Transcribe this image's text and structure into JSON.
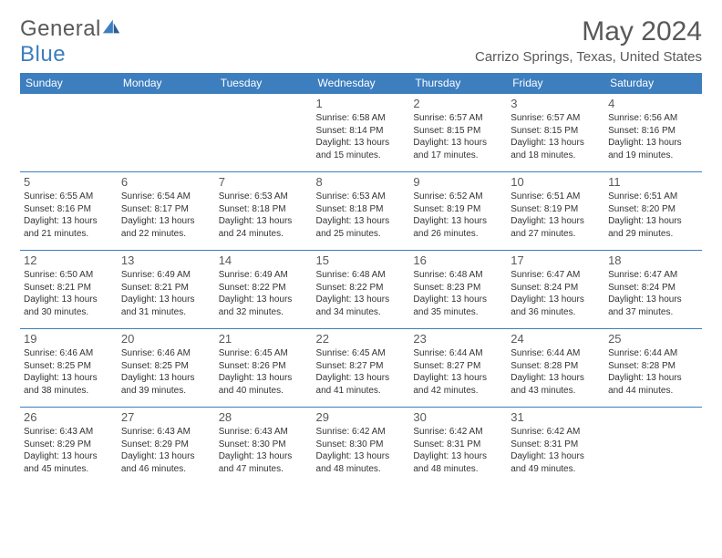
{
  "brand": {
    "name_a": "General",
    "name_b": "Blue"
  },
  "title": "May 2024",
  "location": "Carrizo Springs, Texas, United States",
  "header_color": "#3d7ebf",
  "text_color": "#595959",
  "body_text_color": "#333333",
  "font_family": "Arial, Helvetica, sans-serif",
  "day_names": [
    "Sunday",
    "Monday",
    "Tuesday",
    "Wednesday",
    "Thursday",
    "Friday",
    "Saturday"
  ],
  "weeks": [
    [
      null,
      null,
      null,
      {
        "d": "1",
        "sr": "6:58 AM",
        "ss": "8:14 PM",
        "dh": "13",
        "dm": "15"
      },
      {
        "d": "2",
        "sr": "6:57 AM",
        "ss": "8:15 PM",
        "dh": "13",
        "dm": "17"
      },
      {
        "d": "3",
        "sr": "6:57 AM",
        "ss": "8:15 PM",
        "dh": "13",
        "dm": "18"
      },
      {
        "d": "4",
        "sr": "6:56 AM",
        "ss": "8:16 PM",
        "dh": "13",
        "dm": "19"
      }
    ],
    [
      {
        "d": "5",
        "sr": "6:55 AM",
        "ss": "8:16 PM",
        "dh": "13",
        "dm": "21"
      },
      {
        "d": "6",
        "sr": "6:54 AM",
        "ss": "8:17 PM",
        "dh": "13",
        "dm": "22"
      },
      {
        "d": "7",
        "sr": "6:53 AM",
        "ss": "8:18 PM",
        "dh": "13",
        "dm": "24"
      },
      {
        "d": "8",
        "sr": "6:53 AM",
        "ss": "8:18 PM",
        "dh": "13",
        "dm": "25"
      },
      {
        "d": "9",
        "sr": "6:52 AM",
        "ss": "8:19 PM",
        "dh": "13",
        "dm": "26"
      },
      {
        "d": "10",
        "sr": "6:51 AM",
        "ss": "8:19 PM",
        "dh": "13",
        "dm": "27"
      },
      {
        "d": "11",
        "sr": "6:51 AM",
        "ss": "8:20 PM",
        "dh": "13",
        "dm": "29"
      }
    ],
    [
      {
        "d": "12",
        "sr": "6:50 AM",
        "ss": "8:21 PM",
        "dh": "13",
        "dm": "30"
      },
      {
        "d": "13",
        "sr": "6:49 AM",
        "ss": "8:21 PM",
        "dh": "13",
        "dm": "31"
      },
      {
        "d": "14",
        "sr": "6:49 AM",
        "ss": "8:22 PM",
        "dh": "13",
        "dm": "32"
      },
      {
        "d": "15",
        "sr": "6:48 AM",
        "ss": "8:22 PM",
        "dh": "13",
        "dm": "34"
      },
      {
        "d": "16",
        "sr": "6:48 AM",
        "ss": "8:23 PM",
        "dh": "13",
        "dm": "35"
      },
      {
        "d": "17",
        "sr": "6:47 AM",
        "ss": "8:24 PM",
        "dh": "13",
        "dm": "36"
      },
      {
        "d": "18",
        "sr": "6:47 AM",
        "ss": "8:24 PM",
        "dh": "13",
        "dm": "37"
      }
    ],
    [
      {
        "d": "19",
        "sr": "6:46 AM",
        "ss": "8:25 PM",
        "dh": "13",
        "dm": "38"
      },
      {
        "d": "20",
        "sr": "6:46 AM",
        "ss": "8:25 PM",
        "dh": "13",
        "dm": "39"
      },
      {
        "d": "21",
        "sr": "6:45 AM",
        "ss": "8:26 PM",
        "dh": "13",
        "dm": "40"
      },
      {
        "d": "22",
        "sr": "6:45 AM",
        "ss": "8:27 PM",
        "dh": "13",
        "dm": "41"
      },
      {
        "d": "23",
        "sr": "6:44 AM",
        "ss": "8:27 PM",
        "dh": "13",
        "dm": "42"
      },
      {
        "d": "24",
        "sr": "6:44 AM",
        "ss": "8:28 PM",
        "dh": "13",
        "dm": "43"
      },
      {
        "d": "25",
        "sr": "6:44 AM",
        "ss": "8:28 PM",
        "dh": "13",
        "dm": "44"
      }
    ],
    [
      {
        "d": "26",
        "sr": "6:43 AM",
        "ss": "8:29 PM",
        "dh": "13",
        "dm": "45"
      },
      {
        "d": "27",
        "sr": "6:43 AM",
        "ss": "8:29 PM",
        "dh": "13",
        "dm": "46"
      },
      {
        "d": "28",
        "sr": "6:43 AM",
        "ss": "8:30 PM",
        "dh": "13",
        "dm": "47"
      },
      {
        "d": "29",
        "sr": "6:42 AM",
        "ss": "8:30 PM",
        "dh": "13",
        "dm": "48"
      },
      {
        "d": "30",
        "sr": "6:42 AM",
        "ss": "8:31 PM",
        "dh": "13",
        "dm": "48"
      },
      {
        "d": "31",
        "sr": "6:42 AM",
        "ss": "8:31 PM",
        "dh": "13",
        "dm": "49"
      },
      null
    ]
  ],
  "labels": {
    "sunrise": "Sunrise: ",
    "sunset": "Sunset: ",
    "daylight_a": "Daylight: ",
    "daylight_b": " hours and ",
    "daylight_c": " minutes."
  }
}
